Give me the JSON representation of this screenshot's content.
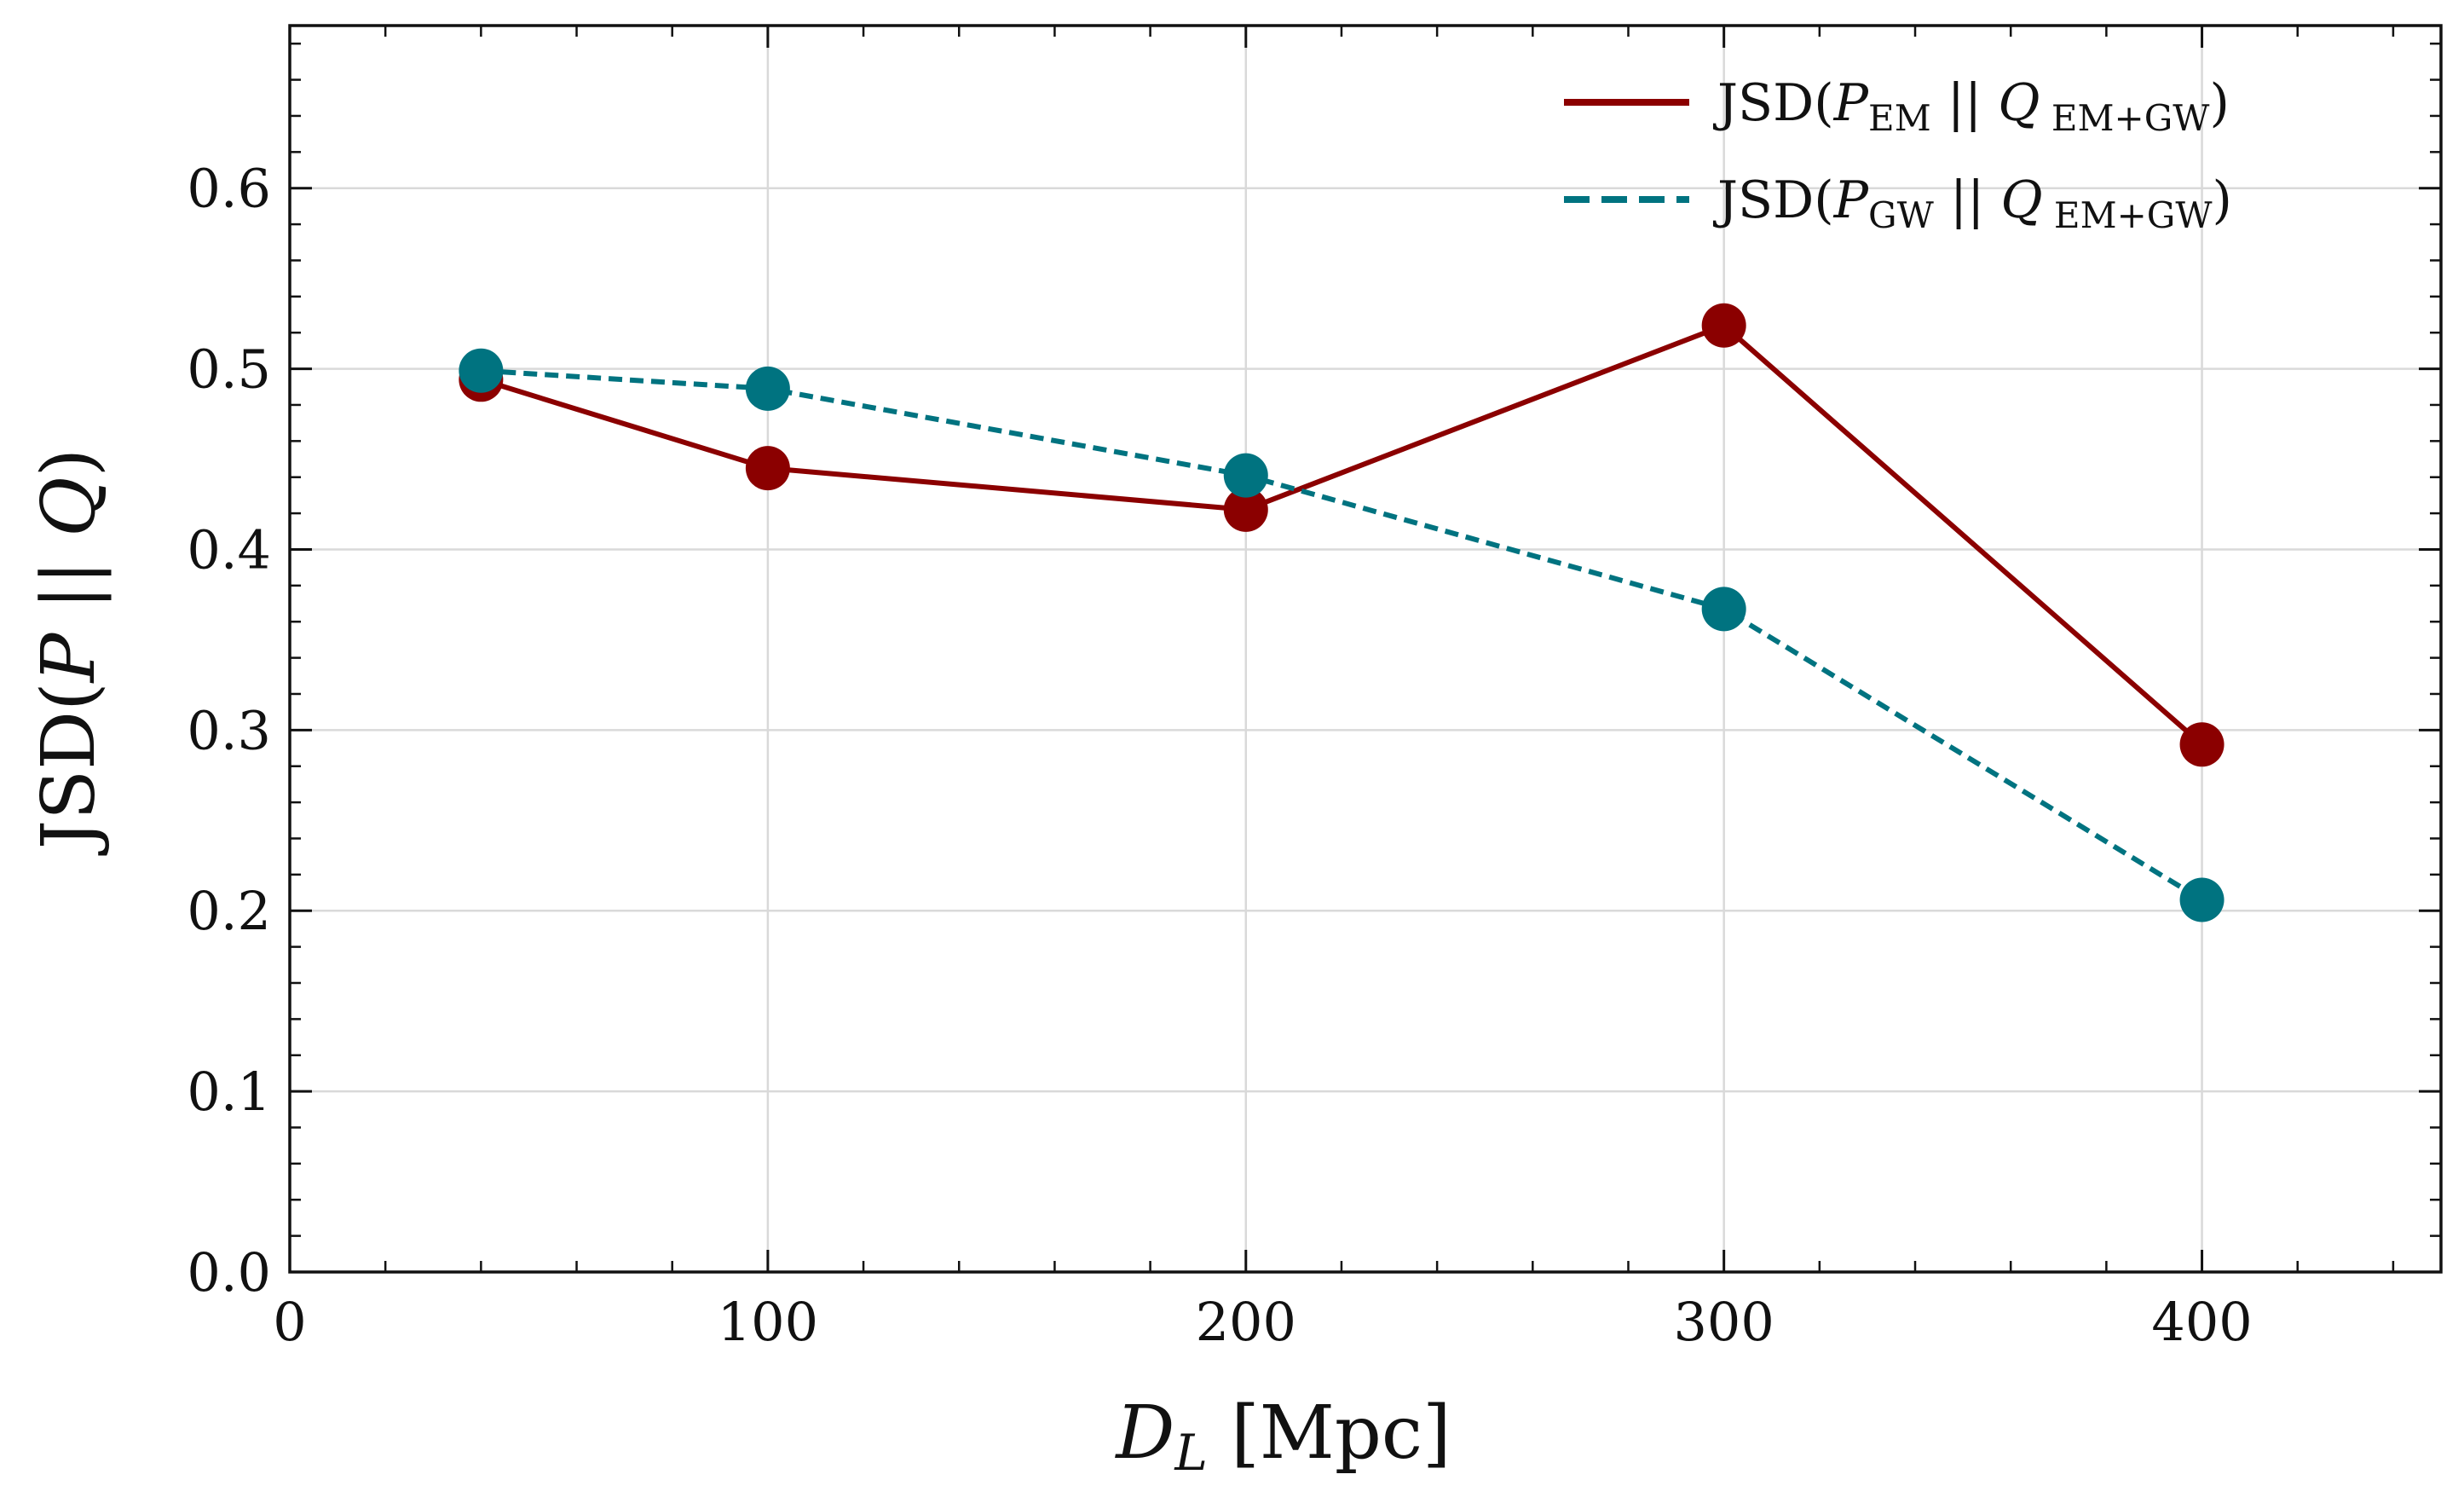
{
  "chart_data": {
    "type": "line",
    "title": "",
    "xlabel": "D_L [Mpc]",
    "ylabel": "JSD(P || Q)",
    "xlim": [
      0,
      450
    ],
    "ylim": [
      0,
      0.69
    ],
    "x_ticks": [
      0,
      100,
      200,
      300,
      400
    ],
    "y_ticks": [
      0.0,
      0.1,
      0.2,
      0.3,
      0.4,
      0.5,
      0.6
    ],
    "x_tick_labels": [
      "0",
      "100",
      "200",
      "300",
      "400"
    ],
    "y_tick_labels": [
      "0.0",
      "0.1",
      "0.2",
      "0.3",
      "0.4",
      "0.5",
      "0.6"
    ],
    "grid": true,
    "legend_position": "top-right",
    "series": [
      {
        "name": "JSD(P_EM || Q_EM+GW)",
        "color": "#8b0000",
        "line_style": "solid",
        "marker": "circle",
        "x": [
          40,
          100,
          200,
          300,
          400
        ],
        "y": [
          0.494,
          0.445,
          0.422,
          0.524,
          0.292
        ]
      },
      {
        "name": "JSD(P_GW || Q_EM+GW)",
        "color": "#007380",
        "line_style": "dashed",
        "marker": "circle",
        "x": [
          40,
          100,
          200,
          300,
          400
        ],
        "y": [
          0.499,
          0.489,
          0.441,
          0.367,
          0.206
        ]
      }
    ]
  },
  "axis_label_parts": {
    "x_main": "D",
    "x_sub": "L",
    "x_unit": " [Mpc]",
    "y_prefix": "JSD(",
    "y_p": "P",
    "y_mid": " || ",
    "y_q": "Q",
    "y_suffix": ")"
  },
  "legend": [
    {
      "prefix": "JSD(",
      "p": "P",
      "p_sub": "EM",
      "mid": " || ",
      "q": "Q",
      "q_sub": " EM+GW",
      "suffix": ")"
    },
    {
      "prefix": "JSD(",
      "p": "P",
      "p_sub": "GW",
      "mid": " || ",
      "q": "Q",
      "q_sub": " EM+GW",
      "suffix": ")"
    }
  ]
}
